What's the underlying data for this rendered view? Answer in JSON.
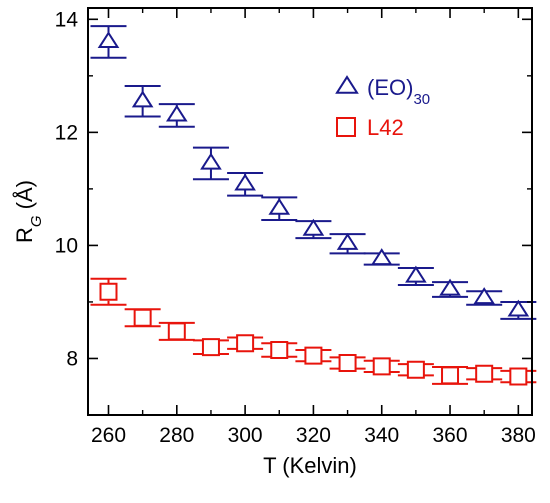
{
  "chart_data": {
    "type": "scatter",
    "xlabel": "T (Kelvin)",
    "ylabel_main": "R",
    "ylabel_sub": "G",
    "ylabel_unit": " (Å)",
    "xlim": [
      254,
      384
    ],
    "ylim": [
      7.0,
      14.2
    ],
    "xticks": [
      260,
      280,
      300,
      320,
      340,
      360,
      380
    ],
    "xtick_labels": [
      "260",
      "280",
      "300",
      "320",
      "340",
      "360",
      "380"
    ],
    "yticks": [
      8,
      10,
      12,
      14
    ],
    "ytick_labels": [
      "8",
      "10",
      "12",
      "14"
    ],
    "grid": false,
    "legend_position": "top-right",
    "series": [
      {
        "name": "(EO)",
        "name_sub": "30",
        "marker": "triangle",
        "color": "#1a1a8c",
        "x": [
          260,
          270,
          280,
          290,
          300,
          310,
          320,
          330,
          340,
          350,
          360,
          370,
          380
        ],
        "y": [
          13.6,
          12.55,
          12.3,
          11.45,
          11.08,
          10.65,
          10.28,
          10.03,
          9.76,
          9.45,
          9.22,
          9.07,
          8.85
        ],
        "err": [
          0.28,
          0.27,
          0.2,
          0.28,
          0.2,
          0.2,
          0.15,
          0.17,
          0.1,
          0.15,
          0.13,
          0.12,
          0.15
        ]
      },
      {
        "name": "L42",
        "marker": "square",
        "color": "#e8140c",
        "x": [
          260,
          270,
          280,
          290,
          300,
          310,
          320,
          330,
          340,
          350,
          360,
          370,
          380
        ],
        "y": [
          9.18,
          8.72,
          8.48,
          8.2,
          8.27,
          8.15,
          8.05,
          7.92,
          7.86,
          7.8,
          7.7,
          7.73,
          7.68
        ],
        "err": [
          0.23,
          0.15,
          0.15,
          0.12,
          0.1,
          0.12,
          0.1,
          0.1,
          0.1,
          0.1,
          0.15,
          0.1,
          0.1
        ]
      }
    ]
  }
}
